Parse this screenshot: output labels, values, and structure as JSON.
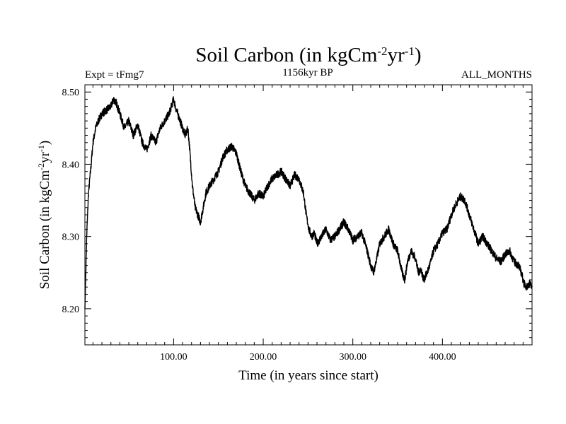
{
  "chart_data": {
    "type": "line",
    "title": "Soil Carbon (in kgCm",
    "title_sup1": "-2",
    "title_mid": "yr",
    "title_sup2": "-1",
    "title_end": ")",
    "subtitle_left": "Expt = tFmg7",
    "subtitle_center": "1156kyr BP",
    "subtitle_right": "ALL_MONTHS",
    "xlabel": "Time (in years since start)",
    "ylabel_pre": "Soil Carbon (in kgCm",
    "ylabel_sup1": "-2",
    "ylabel_mid": "yr",
    "ylabel_sup2": "-1",
    "ylabel_end": ")",
    "xlim": [
      1,
      500
    ],
    "ylim": [
      8.15,
      8.51
    ],
    "x_ticks": [
      {
        "value": 100,
        "label": "100.00"
      },
      {
        "value": 200,
        "label": "200.00"
      },
      {
        "value": 300,
        "label": "300.00"
      },
      {
        "value": 400,
        "label": "400.00"
      }
    ],
    "y_ticks": [
      {
        "value": 8.2,
        "label": "8.20"
      },
      {
        "value": 8.3,
        "label": "8.30"
      },
      {
        "value": 8.4,
        "label": "8.40"
      },
      {
        "value": 8.5,
        "label": "8.50"
      }
    ],
    "x_minor_step": 10,
    "y_minor_step": 0.01,
    "series": [
      {
        "name": "Soil Carbon",
        "color": "#000000",
        "x": [
          1,
          3,
          5,
          8,
          10,
          13,
          16,
          20,
          25,
          30,
          33,
          36,
          40,
          45,
          50,
          55,
          60,
          65,
          70,
          75,
          80,
          85,
          90,
          95,
          100,
          103,
          106,
          110,
          113,
          116,
          118,
          121,
          124,
          127,
          130,
          133,
          136,
          140,
          145,
          150,
          155,
          160,
          165,
          170,
          175,
          180,
          185,
          190,
          195,
          200,
          205,
          210,
          215,
          220,
          225,
          230,
          235,
          240,
          245,
          248,
          251,
          254,
          257,
          260,
          265,
          270,
          275,
          280,
          285,
          290,
          295,
          300,
          305,
          310,
          315,
          320,
          323,
          326,
          330,
          335,
          340,
          345,
          350,
          355,
          358,
          361,
          365,
          370,
          373,
          376,
          379,
          383,
          387,
          390,
          395,
          400,
          405,
          410,
          415,
          420,
          425,
          430,
          435,
          440,
          445,
          450,
          455,
          460,
          465,
          470,
          475,
          480,
          485,
          488,
          491,
          494,
          497,
          500
        ],
        "values": [
          8.2,
          8.3,
          8.36,
          8.4,
          8.43,
          8.45,
          8.46,
          8.47,
          8.475,
          8.48,
          8.49,
          8.485,
          8.47,
          8.45,
          8.46,
          8.44,
          8.455,
          8.43,
          8.42,
          8.44,
          8.43,
          8.45,
          8.46,
          8.47,
          8.49,
          8.475,
          8.465,
          8.45,
          8.44,
          8.45,
          8.42,
          8.37,
          8.34,
          8.33,
          8.32,
          8.34,
          8.36,
          8.37,
          8.38,
          8.39,
          8.41,
          8.42,
          8.425,
          8.415,
          8.39,
          8.37,
          8.36,
          8.35,
          8.36,
          8.355,
          8.37,
          8.38,
          8.385,
          8.39,
          8.38,
          8.37,
          8.385,
          8.38,
          8.36,
          8.33,
          8.31,
          8.3,
          8.305,
          8.29,
          8.3,
          8.31,
          8.295,
          8.3,
          8.31,
          8.32,
          8.31,
          8.295,
          8.3,
          8.305,
          8.285,
          8.26,
          8.25,
          8.265,
          8.29,
          8.3,
          8.31,
          8.29,
          8.28,
          8.25,
          8.24,
          8.265,
          8.28,
          8.27,
          8.25,
          8.255,
          8.24,
          8.25,
          8.265,
          8.28,
          8.29,
          8.305,
          8.31,
          8.33,
          8.345,
          8.355,
          8.35,
          8.33,
          8.31,
          8.29,
          8.3,
          8.29,
          8.28,
          8.27,
          8.265,
          8.275,
          8.28,
          8.265,
          8.26,
          8.25,
          8.235,
          8.23,
          8.235,
          8.23
        ]
      }
    ]
  }
}
